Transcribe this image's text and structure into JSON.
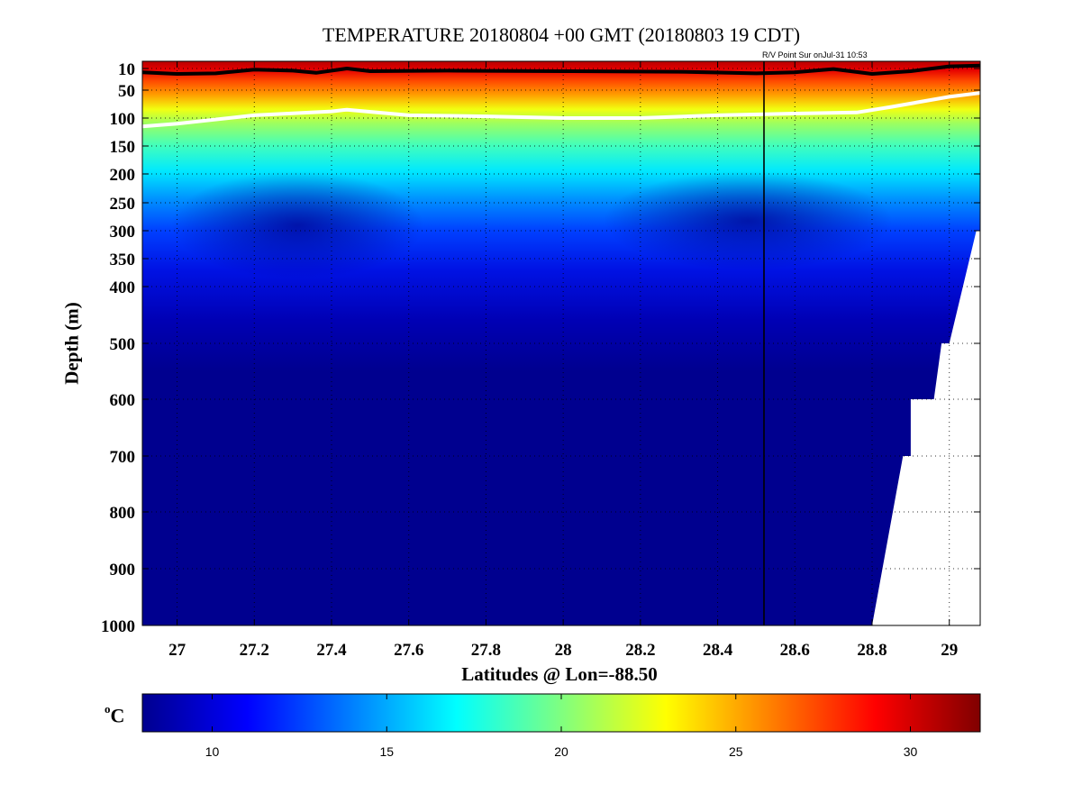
{
  "title": "TEMPERATURE 20180804 +00 GMT (20180803 19 CDT)",
  "subnote": "R/V Point Sur onJul-31 10:53",
  "chart_data": {
    "type": "heatmap",
    "title": "TEMPERATURE 20180804 +00 GMT (20180803 19 CDT)",
    "xlabel": "Latitudes @ Lon=-88.50",
    "ylabel": "Depth (m)",
    "xlim": [
      26.91,
      29.08
    ],
    "ylim": [
      1000,
      0
    ],
    "x_ticks": [
      "27",
      "27.2",
      "27.4",
      "27.6",
      "27.8",
      "28",
      "28.2",
      "28.4",
      "28.6",
      "28.8",
      "29"
    ],
    "y_ticks": [
      "10",
      "50",
      "100",
      "150",
      "200",
      "250",
      "300",
      "350",
      "400",
      "500",
      "600",
      "700",
      "800",
      "900",
      "1000"
    ],
    "y_tick_values": [
      10,
      50,
      100,
      150,
      200,
      250,
      300,
      350,
      400,
      500,
      600,
      700,
      800,
      900,
      1000
    ],
    "grid": true,
    "colorbar": {
      "unit_sup": "o",
      "unit": "C",
      "range": [
        8,
        32
      ],
      "ticks": [
        "10",
        "15",
        "20",
        "25",
        "30"
      ],
      "tick_values": [
        10,
        15,
        20,
        25,
        30
      ],
      "colormap": "jet"
    },
    "vertical_line_lat": 28.52,
    "bottom_profile": [
      [
        28.8,
        1000
      ],
      [
        28.88,
        700
      ],
      [
        28.9,
        700
      ],
      [
        28.9,
        600
      ],
      [
        28.96,
        600
      ],
      [
        28.98,
        500
      ],
      [
        29.0,
        500
      ],
      [
        29.07,
        300
      ],
      [
        29.08,
        300
      ]
    ],
    "contours": [
      {
        "name": "26 C",
        "color": "#000000",
        "points": [
          [
            26.91,
            17
          ],
          [
            27.0,
            20
          ],
          [
            27.1,
            19
          ],
          [
            27.2,
            12
          ],
          [
            27.3,
            14
          ],
          [
            27.36,
            18
          ],
          [
            27.44,
            10
          ],
          [
            27.5,
            15
          ],
          [
            27.7,
            14
          ],
          [
            28.0,
            15
          ],
          [
            28.3,
            16
          ],
          [
            28.5,
            19
          ],
          [
            28.6,
            17
          ],
          [
            28.7,
            11
          ],
          [
            28.8,
            20
          ],
          [
            28.9,
            15
          ],
          [
            29.0,
            7
          ],
          [
            29.08,
            6
          ]
        ]
      },
      {
        "name": "20 C",
        "color": "#ffffff",
        "points": [
          [
            26.91,
            115
          ],
          [
            27.0,
            110
          ],
          [
            27.2,
            95
          ],
          [
            27.4,
            88
          ],
          [
            27.44,
            85
          ],
          [
            27.6,
            95
          ],
          [
            27.8,
            97
          ],
          [
            28.0,
            100
          ],
          [
            28.2,
            100
          ],
          [
            28.4,
            95
          ],
          [
            28.6,
            92
          ],
          [
            28.76,
            90
          ],
          [
            28.85,
            80
          ],
          [
            29.0,
            62
          ],
          [
            29.08,
            55
          ]
        ]
      }
    ]
  }
}
